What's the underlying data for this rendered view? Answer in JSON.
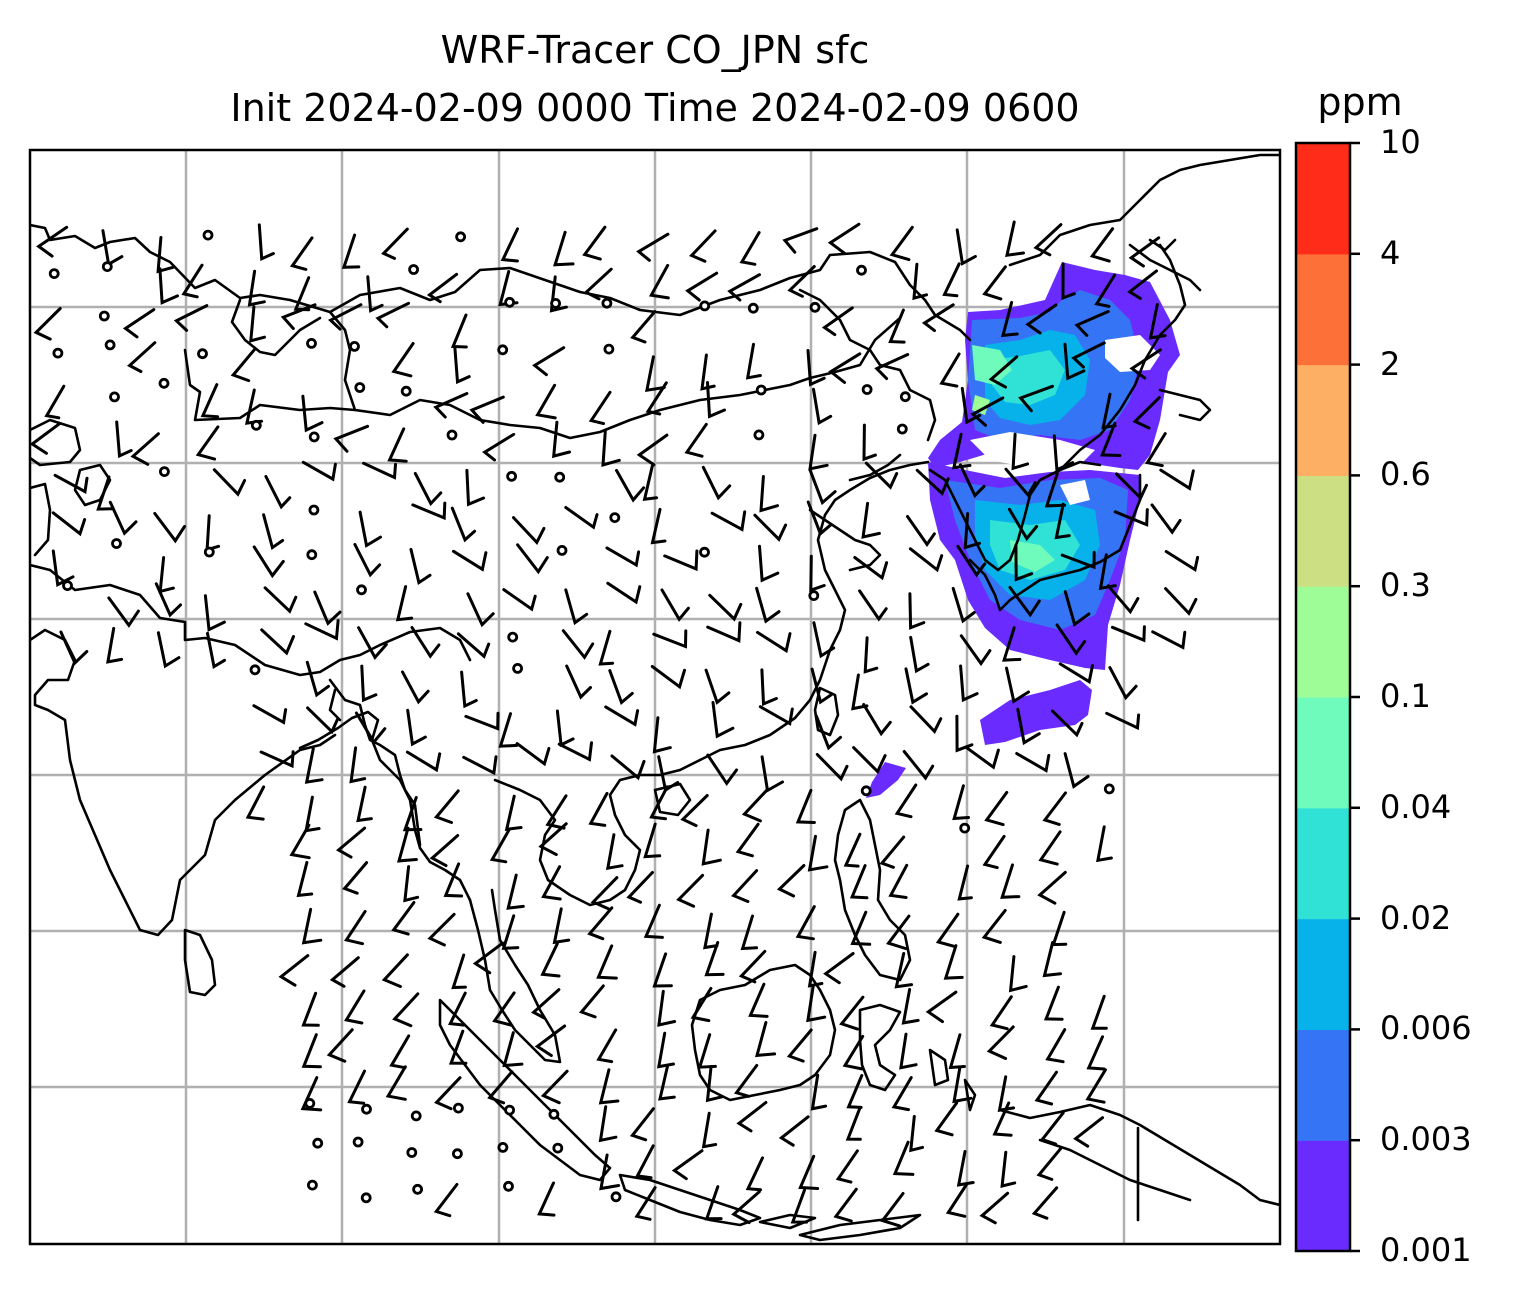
{
  "title_line1": "WRF-Tracer CO_JPN sfc",
  "title_line2": "Init 2024-02-09 0000 Time 2024-02-09 0600",
  "colorbar": {
    "unit": "ppm",
    "levels": [
      "0.001",
      "0.003",
      "0.006",
      "0.02",
      "0.04",
      "0.1",
      "0.3",
      "0.6",
      "2",
      "4",
      "10"
    ],
    "colors": [
      "#6a2bff",
      "#3575f5",
      "#07b2ea",
      "#30e1d6",
      "#6efbbb",
      "#9ffd98",
      "#cce083",
      "#fdb064",
      "#fd7038",
      "#fe2c18"
    ]
  },
  "map": {
    "gridlines": true,
    "coastline_color": "#000000",
    "grid_color": "#b0b0b0",
    "wind_barbs": true,
    "tracer_field": "CO_JPN"
  }
}
